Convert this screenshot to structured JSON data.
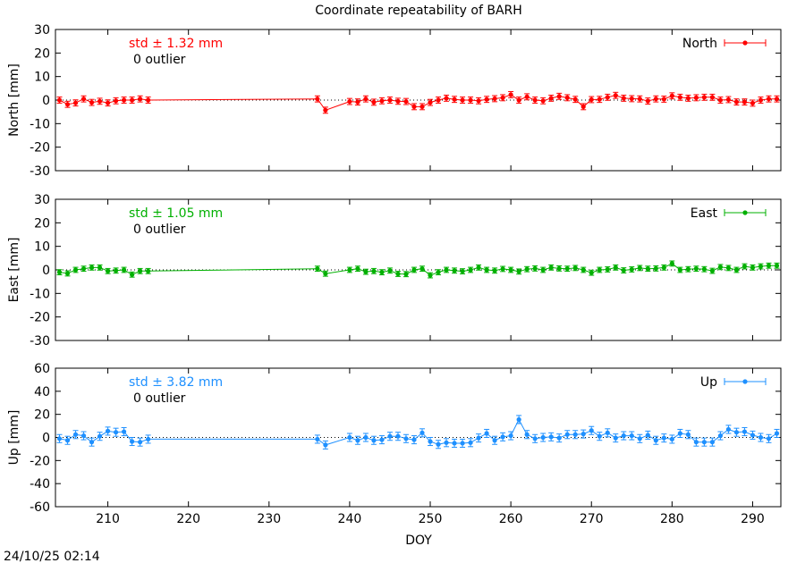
{
  "title": "Coordinate repeatability of BARH",
  "timestamp": "24/10/25 02:14",
  "xlabel": "DOY",
  "chart_data": [
    {
      "type": "line",
      "name": "North",
      "ylabel": "North [mm]",
      "ylim": [
        -30,
        30
      ],
      "yticks": [
        -30,
        -20,
        -10,
        0,
        10,
        20,
        30
      ],
      "xlim": [
        203.5,
        293.5
      ],
      "xticks": [
        210,
        220,
        230,
        240,
        250,
        260,
        270,
        280,
        290
      ],
      "color": "#ff0000",
      "std_label": "std ± 1.32 mm",
      "outlier_label": "0 outlier",
      "legend": "North",
      "legend_position": "top-right",
      "x": [
        204,
        205,
        206,
        207,
        208,
        209,
        210,
        211,
        212,
        213,
        214,
        215,
        236,
        237,
        240,
        241,
        242,
        243,
        244,
        245,
        246,
        247,
        248,
        249,
        250,
        251,
        252,
        253,
        254,
        255,
        256,
        257,
        258,
        259,
        260,
        261,
        262,
        263,
        264,
        265,
        266,
        267,
        268,
        269,
        270,
        271,
        272,
        273,
        274,
        275,
        276,
        277,
        278,
        279,
        280,
        281,
        282,
        283,
        284,
        285,
        286,
        287,
        288,
        289,
        290,
        291,
        292,
        293
      ],
      "y": [
        0,
        -1.8,
        -1.2,
        0.5,
        -1,
        -0.5,
        -1.2,
        -0.3,
        0,
        0,
        0.5,
        0,
        0.5,
        -4.3,
        -0.6,
        -0.8,
        0.5,
        -0.9,
        -0.3,
        0,
        -0.5,
        -0.6,
        -2.8,
        -2.8,
        -1,
        0,
        0.8,
        0.3,
        0,
        0,
        -0.3,
        0.3,
        0.6,
        1,
        2.3,
        0,
        1.4,
        0,
        -0.3,
        0.8,
        1.6,
        1,
        0.3,
        -2.8,
        0.2,
        0.3,
        1.2,
        2,
        0.8,
        0.6,
        0.5,
        -0.4,
        0.5,
        0.4,
        1.8,
        1.2,
        0.8,
        1,
        1.2,
        1.2,
        0,
        0.2,
        -0.8,
        -0.8,
        -1.3,
        0,
        0.5,
        0.5
      ],
      "err": 1.3
    },
    {
      "type": "line",
      "name": "East",
      "ylabel": "East [mm]",
      "ylim": [
        -30,
        30
      ],
      "yticks": [
        -30,
        -20,
        -10,
        0,
        10,
        20,
        30
      ],
      "xlim": [
        203.5,
        293.5
      ],
      "xticks": [
        210,
        220,
        230,
        240,
        250,
        260,
        270,
        280,
        290
      ],
      "color": "#00b000",
      "std_label": "std ± 1.05 mm",
      "outlier_label": "0 outlier",
      "legend": "East",
      "legend_position": "top-right",
      "x": [
        204,
        205,
        206,
        207,
        208,
        209,
        210,
        211,
        212,
        213,
        214,
        215,
        236,
        237,
        240,
        241,
        242,
        243,
        244,
        245,
        246,
        247,
        248,
        249,
        250,
        251,
        252,
        253,
        254,
        255,
        256,
        257,
        258,
        259,
        260,
        261,
        262,
        263,
        264,
        265,
        266,
        267,
        268,
        269,
        270,
        271,
        272,
        273,
        274,
        275,
        276,
        277,
        278,
        279,
        280,
        281,
        282,
        283,
        284,
        285,
        286,
        287,
        288,
        289,
        290,
        291,
        292,
        293
      ],
      "y": [
        -1,
        -1.5,
        0,
        0.5,
        1,
        1,
        -0.5,
        -0.3,
        0,
        -2,
        -0.5,
        -0.5,
        0.5,
        -1.6,
        0,
        0.5,
        -0.8,
        -0.5,
        -1,
        -0.3,
        -1.7,
        -1.8,
        0,
        0.5,
        -2.3,
        -1,
        0,
        -0.3,
        -0.6,
        0,
        1,
        0,
        -0.3,
        0.4,
        0,
        -0.7,
        0.3,
        0.6,
        0,
        1,
        0.6,
        0.5,
        0.8,
        0,
        -1.2,
        0,
        0.2,
        1,
        -0.2,
        0.2,
        0.8,
        0.5,
        0.6,
        1,
        2.7,
        0,
        0.3,
        0.5,
        0.3,
        -0.4,
        1.2,
        0.8,
        0,
        1.5,
        1,
        1.5,
        1.8,
        1.8
      ],
      "err": 1.1
    },
    {
      "type": "line",
      "name": "Up",
      "ylabel": "Up [mm]",
      "ylim": [
        -60,
        60
      ],
      "yticks": [
        -60,
        -40,
        -20,
        0,
        20,
        40,
        60
      ],
      "xlim": [
        203.5,
        293.5
      ],
      "xticks": [
        210,
        220,
        230,
        240,
        250,
        260,
        270,
        280,
        290
      ],
      "color": "#1e90ff",
      "std_label": "std ± 3.82 mm",
      "outlier_label": "0 outlier",
      "legend": "Up",
      "legend_position": "top-right",
      "x": [
        204,
        205,
        206,
        207,
        208,
        209,
        210,
        211,
        212,
        213,
        214,
        215,
        236,
        237,
        240,
        241,
        242,
        243,
        244,
        245,
        246,
        247,
        248,
        249,
        250,
        251,
        252,
        253,
        254,
        255,
        256,
        257,
        258,
        259,
        260,
        261,
        262,
        263,
        264,
        265,
        266,
        267,
        268,
        269,
        270,
        271,
        272,
        273,
        274,
        275,
        276,
        277,
        278,
        279,
        280,
        281,
        282,
        283,
        284,
        285,
        286,
        287,
        288,
        289,
        290,
        291,
        292,
        293
      ],
      "y": [
        -1,
        -2.5,
        2.5,
        1.5,
        -4,
        1,
        5.5,
        4.5,
        5,
        -3.5,
        -4,
        -1.5,
        -1.5,
        -6.5,
        0,
        -2.5,
        0,
        -2.5,
        -2,
        1,
        1,
        -1,
        -2,
        4,
        -3.5,
        -6,
        -4.5,
        -5,
        -5,
        -4.5,
        -0.5,
        3.5,
        -2.5,
        0.5,
        1.5,
        15.5,
        2.5,
        -1,
        0,
        0.5,
        -0.5,
        2.5,
        2.5,
        3,
        6,
        1,
        4,
        -0.5,
        1.5,
        1.5,
        -1,
        2,
        -2.5,
        -0.5,
        -1.5,
        3.5,
        2.5,
        -4,
        -4,
        -4,
        1.5,
        7,
        4.5,
        5,
        2,
        0,
        -1,
        3.5
      ],
      "err": 3.5
    }
  ]
}
